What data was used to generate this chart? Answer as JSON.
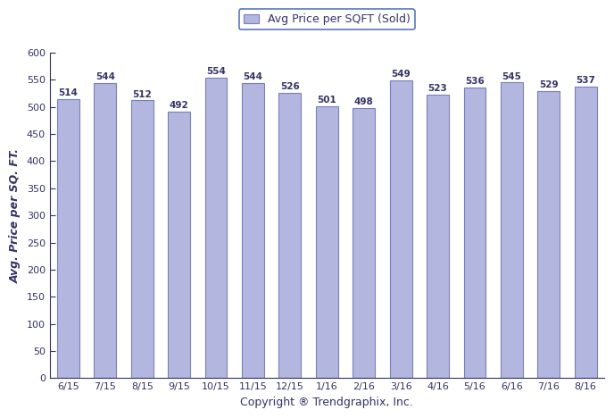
{
  "categories": [
    "6/15",
    "7/15",
    "8/15",
    "9/15",
    "10/15",
    "11/15",
    "12/15",
    "1/16",
    "2/16",
    "3/16",
    "4/16",
    "5/16",
    "6/16",
    "7/16",
    "8/16"
  ],
  "values": [
    514,
    544,
    512,
    492,
    554,
    544,
    526,
    501,
    498,
    549,
    523,
    536,
    545,
    529,
    537
  ],
  "bar_color": "#b3b7e0",
  "bar_edgecolor": "#7b7fb8",
  "plot_bg_color": "#ffffff",
  "fig_bg_color": "#ffffff",
  "ylim": [
    0,
    600
  ],
  "yticks": [
    0,
    50,
    100,
    150,
    200,
    250,
    300,
    350,
    400,
    450,
    500,
    550,
    600
  ],
  "ylabel": "Avg. Price per SQ. FT.",
  "xlabel": "Copyright ® Trendgraphix, Inc.",
  "legend_label": "Avg Price per SQFT (Sold)",
  "label_fontsize": 9,
  "tick_fontsize": 8,
  "annotation_fontsize": 7.5,
  "legend_fontsize": 9,
  "legend_border_color": "#3355aa",
  "spine_color": "#333366",
  "tick_color": "#333366",
  "text_color": "#333366",
  "bar_width": 0.6
}
